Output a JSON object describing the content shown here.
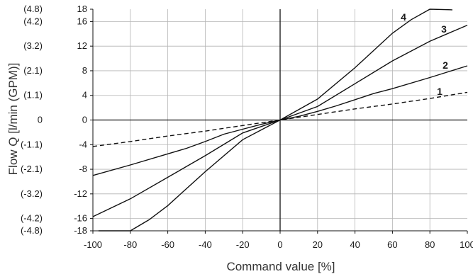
{
  "chart_data": {
    "type": "line",
    "title": "",
    "xlabel": "Command value [%]",
    "ylabel": "Flow Q [l/min (GPM)]",
    "xlim": [
      -100,
      100
    ],
    "ylim": [
      -18,
      18
    ],
    "grid": true,
    "x_ticks": [
      -100,
      -80,
      -60,
      -40,
      -20,
      0,
      20,
      40,
      60,
      80,
      100
    ],
    "x_tick_labels": [
      "-100",
      "-80",
      "-60",
      "-40",
      "-20",
      "0",
      "20",
      "40",
      "60",
      "80",
      "100"
    ],
    "y_ticks": [
      18,
      16,
      12,
      8,
      4,
      0,
      -4,
      -8,
      -12,
      -16,
      -18
    ],
    "y_tick_labels": [
      "18",
      "16",
      "12",
      "8",
      "4",
      "0",
      "-4",
      "-8",
      "-12",
      "-16",
      "-18"
    ],
    "gpm_ticks": [
      {
        "y": 18,
        "label": "(4.8)"
      },
      {
        "y": 16,
        "label": "(4.2)"
      },
      {
        "y": 12,
        "label": "(3.2)"
      },
      {
        "y": 8,
        "label": "(2.1)"
      },
      {
        "y": 4,
        "label": "(1.1)"
      },
      {
        "y": 0,
        "label": "0"
      },
      {
        "y": -4,
        "label": "(-1.1)"
      },
      {
        "y": -8,
        "label": "(-2.1)"
      },
      {
        "y": -12,
        "label": "(-3.2)"
      },
      {
        "y": -16,
        "label": "(-4.2)"
      },
      {
        "y": -18,
        "label": "(-4.8)"
      }
    ],
    "series": [
      {
        "name": "1",
        "dashed": true,
        "x": [
          -100,
          -80,
          -60,
          -40,
          -20,
          0,
          20,
          40,
          60,
          80,
          100
        ],
        "y": [
          -4.3,
          -3.5,
          -2.6,
          -1.8,
          -0.9,
          0,
          0.9,
          1.8,
          2.6,
          3.5,
          4.5
        ]
      },
      {
        "name": "2",
        "dashed": false,
        "x": [
          -100,
          -80,
          -60,
          -50,
          -40,
          -30,
          -20,
          -10,
          0,
          10,
          20,
          30,
          40,
          50,
          60,
          80,
          100
        ],
        "y": [
          -9,
          -7.3,
          -5.5,
          -4.6,
          -3.5,
          -2.3,
          -1.5,
          -0.7,
          0,
          0.6,
          1.4,
          2.3,
          3.3,
          4.3,
          5.1,
          6.9,
          8.8
        ]
      },
      {
        "name": "3",
        "dashed": false,
        "x": [
          -100,
          -80,
          -60,
          -40,
          -20,
          0,
          20,
          40,
          60,
          80,
          100
        ],
        "y": [
          -15.7,
          -12.8,
          -9.3,
          -5.8,
          -2.1,
          0,
          2.2,
          5.9,
          9.6,
          12.8,
          15.4
        ]
      },
      {
        "name": "4",
        "dashed": false,
        "x": [
          -97,
          -80,
          -70,
          -60,
          -40,
          -20,
          0,
          20,
          40,
          60,
          70,
          80,
          92
        ],
        "y": [
          -18,
          -18,
          -16.2,
          -13.9,
          -8.4,
          -3.2,
          0,
          3.4,
          8.5,
          14.1,
          16.3,
          18,
          17.9
        ]
      }
    ]
  }
}
